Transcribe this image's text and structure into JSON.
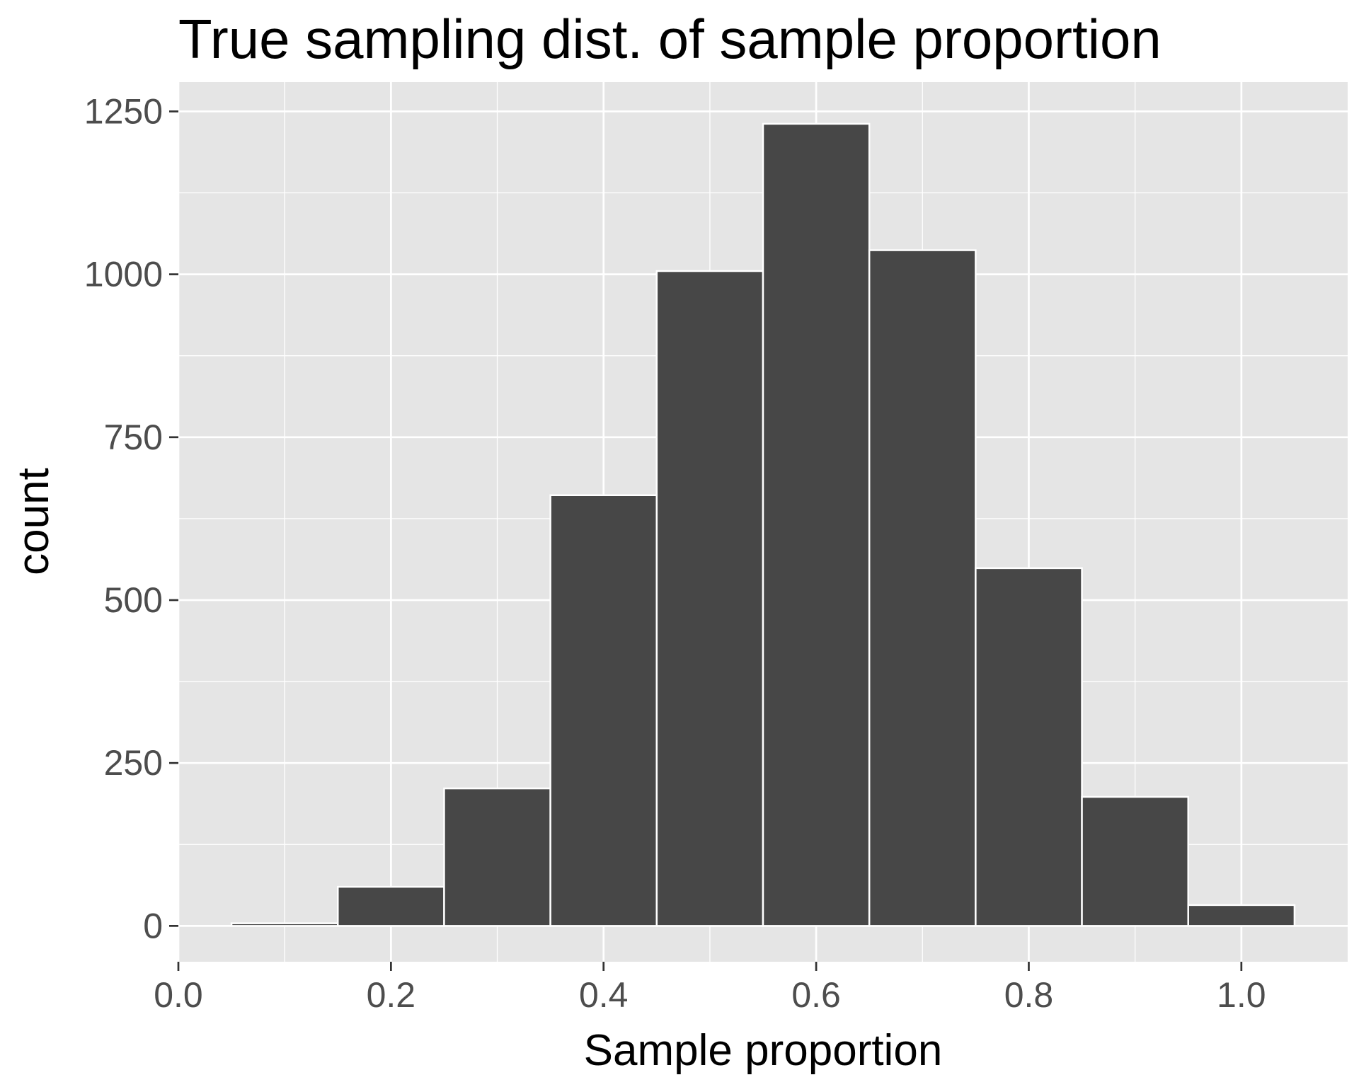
{
  "chart_data": {
    "type": "bar",
    "title": "True sampling dist. of sample proportion",
    "xlabel": "Sample proportion",
    "ylabel": "count",
    "bin_centers": [
      0.1,
      0.2,
      0.3,
      0.4,
      0.5,
      0.6,
      0.7,
      0.8,
      0.9,
      1.0
    ],
    "bin_width": 0.1,
    "values": [
      4,
      60,
      211,
      661,
      1005,
      1231,
      1037,
      549,
      198,
      32
    ],
    "xlim": [
      0.0,
      1.1
    ],
    "ylim": [
      -55,
      1295
    ],
    "xticks": [
      0.0,
      0.2,
      0.4,
      0.6,
      0.8,
      1.0
    ],
    "xtick_labels": [
      "0.0",
      "0.2",
      "0.4",
      "0.6",
      "0.8",
      "1.0"
    ],
    "yticks": [
      0,
      250,
      500,
      750,
      1000,
      1250
    ],
    "ytick_labels": [
      "0",
      "250",
      "500",
      "750",
      "1000",
      "1250"
    ],
    "grid": true,
    "colors": {
      "bar_fill": "#474747",
      "bar_outline": "#ffffff",
      "panel": "#e5e5e5",
      "grid": "#ffffff",
      "tick_text": "#4d4d4d"
    }
  }
}
